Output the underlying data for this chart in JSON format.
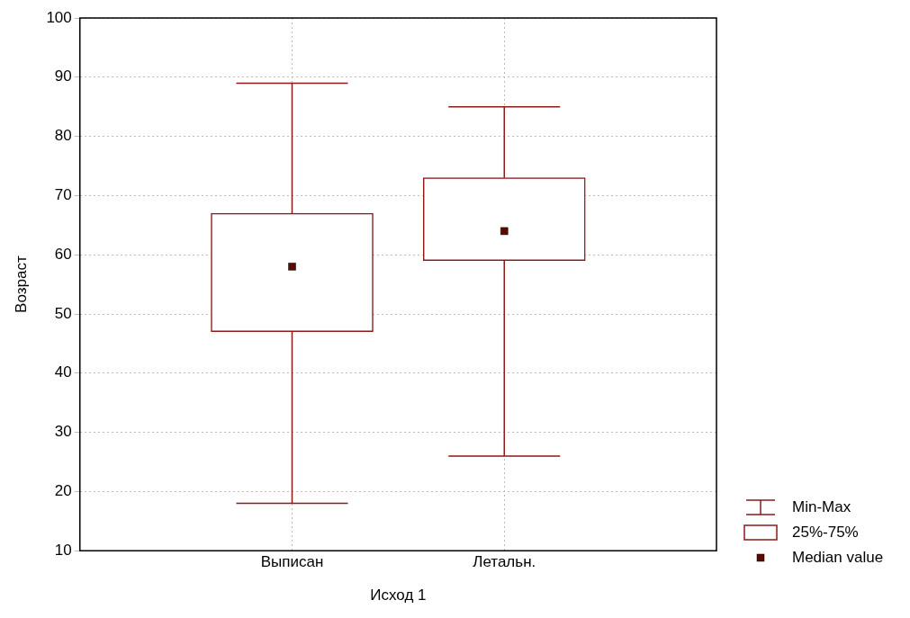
{
  "chart_data": {
    "type": "box",
    "xlabel": "Исход 1",
    "ylabel": "Возраст",
    "categories": [
      "Выписан",
      "Летальн."
    ],
    "boxes": [
      {
        "low": 18,
        "q1": 47,
        "median": 58,
        "q3": 67,
        "high": 89
      },
      {
        "low": 26,
        "q1": 59,
        "median": 64,
        "q3": 73,
        "high": 85
      }
    ],
    "color": "#8b1a1a",
    "ylim": [
      10,
      100
    ],
    "yticks": [
      10,
      20,
      30,
      40,
      50,
      60,
      70,
      80,
      90,
      100
    ],
    "grid": true,
    "annotations": [
      "Min-Max",
      "25%-75%",
      "Median value"
    ]
  }
}
